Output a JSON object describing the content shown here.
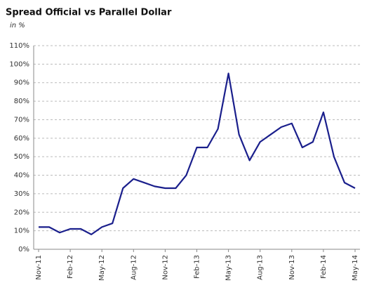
{
  "chart_data": {
    "type": "line",
    "title": "Spread Official vs Parallel Dollar",
    "subtitle": "in %",
    "x": [
      "Nov-11",
      "Dec-11",
      "Jan-12",
      "Feb-12",
      "Mar-12",
      "Apr-12",
      "May-12",
      "Jun-12",
      "Jul-12",
      "Aug-12",
      "Sep-12",
      "Oct-12",
      "Nov-12",
      "Dec-12",
      "Jan-13",
      "Feb-13",
      "Mar-13",
      "Apr-13",
      "May-13",
      "Jun-13",
      "Jul-13",
      "Aug-13",
      "Sep-13",
      "Oct-13",
      "Nov-13",
      "Dec-13",
      "Jan-14",
      "Feb-14",
      "Mar-14",
      "Apr-14",
      "May-14"
    ],
    "xticks": [
      "Nov-11",
      "Feb-12",
      "May-12",
      "Aug-12",
      "Nov-12",
      "Feb-13",
      "May-13",
      "Aug-13",
      "Nov-13",
      "Feb-14",
      "May-14"
    ],
    "series": [
      {
        "color": "#1a1f8c",
        "values": [
          12,
          12,
          9,
          11,
          11,
          8,
          12,
          14,
          33,
          38,
          36,
          34,
          33,
          33,
          40,
          55,
          55,
          65,
          95,
          62,
          48,
          58,
          62,
          66,
          68,
          55,
          58,
          74,
          50,
          36,
          33
        ]
      }
    ],
    "ylim": [
      0,
      110
    ],
    "yticks": [
      {
        "value": 0,
        "label": "0%"
      },
      {
        "value": 10,
        "label": "10%"
      },
      {
        "value": 20,
        "label": "20%"
      },
      {
        "value": 30,
        "label": "30%"
      },
      {
        "value": 40,
        "label": "40%"
      },
      {
        "value": 50,
        "label": "50%"
      },
      {
        "value": 60,
        "label": "60%"
      },
      {
        "value": 70,
        "label": "70%"
      },
      {
        "value": 80,
        "label": "80%"
      },
      {
        "value": 90,
        "label": "90%"
      },
      {
        "value": 100,
        "label": "100%"
      },
      {
        "value": 110,
        "label": "110%"
      }
    ],
    "grid": true
  }
}
